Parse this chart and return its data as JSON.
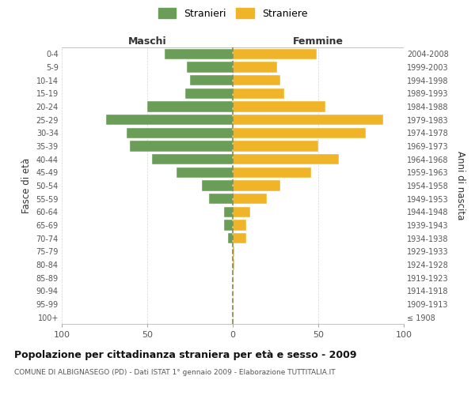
{
  "age_groups": [
    "100+",
    "95-99",
    "90-94",
    "85-89",
    "80-84",
    "75-79",
    "70-74",
    "65-69",
    "60-64",
    "55-59",
    "50-54",
    "45-49",
    "40-44",
    "35-39",
    "30-34",
    "25-29",
    "20-24",
    "15-19",
    "10-14",
    "5-9",
    "0-4"
  ],
  "birth_years": [
    "≤ 1908",
    "1909-1913",
    "1914-1918",
    "1919-1923",
    "1924-1928",
    "1929-1933",
    "1934-1938",
    "1939-1943",
    "1944-1948",
    "1949-1953",
    "1954-1958",
    "1959-1963",
    "1964-1968",
    "1969-1973",
    "1974-1978",
    "1979-1983",
    "1984-1988",
    "1989-1993",
    "1994-1998",
    "1999-2003",
    "2004-2008"
  ],
  "maschi": [
    0,
    0,
    0,
    0,
    0,
    0,
    3,
    5,
    5,
    14,
    18,
    33,
    47,
    60,
    62,
    74,
    50,
    28,
    25,
    27,
    40
  ],
  "femmine": [
    0,
    0,
    0,
    0,
    1,
    1,
    8,
    8,
    10,
    20,
    28,
    46,
    62,
    50,
    78,
    88,
    54,
    30,
    28,
    26,
    49
  ],
  "male_color": "#6a9e58",
  "female_color": "#f0b429",
  "bar_height": 0.8,
  "xlim": 100,
  "title": "Popolazione per cittadinanza straniera per età e sesso - 2009",
  "subtitle": "COMUNE DI ALBIGNASEGO (PD) - Dati ISTAT 1° gennaio 2009 - Elaborazione TUTTITALIA.IT",
  "ylabel_left": "Fasce di età",
  "ylabel_right": "Anni di nascita",
  "legend_male": "Stranieri",
  "legend_female": "Straniere",
  "maschi_header": "Maschi",
  "femmine_header": "Femmine",
  "bg_color": "#ffffff",
  "grid_color": "#cccccc",
  "dashed_line_color": "#888844",
  "tick_label_color": "#555555",
  "axis_label_color": "#333333"
}
